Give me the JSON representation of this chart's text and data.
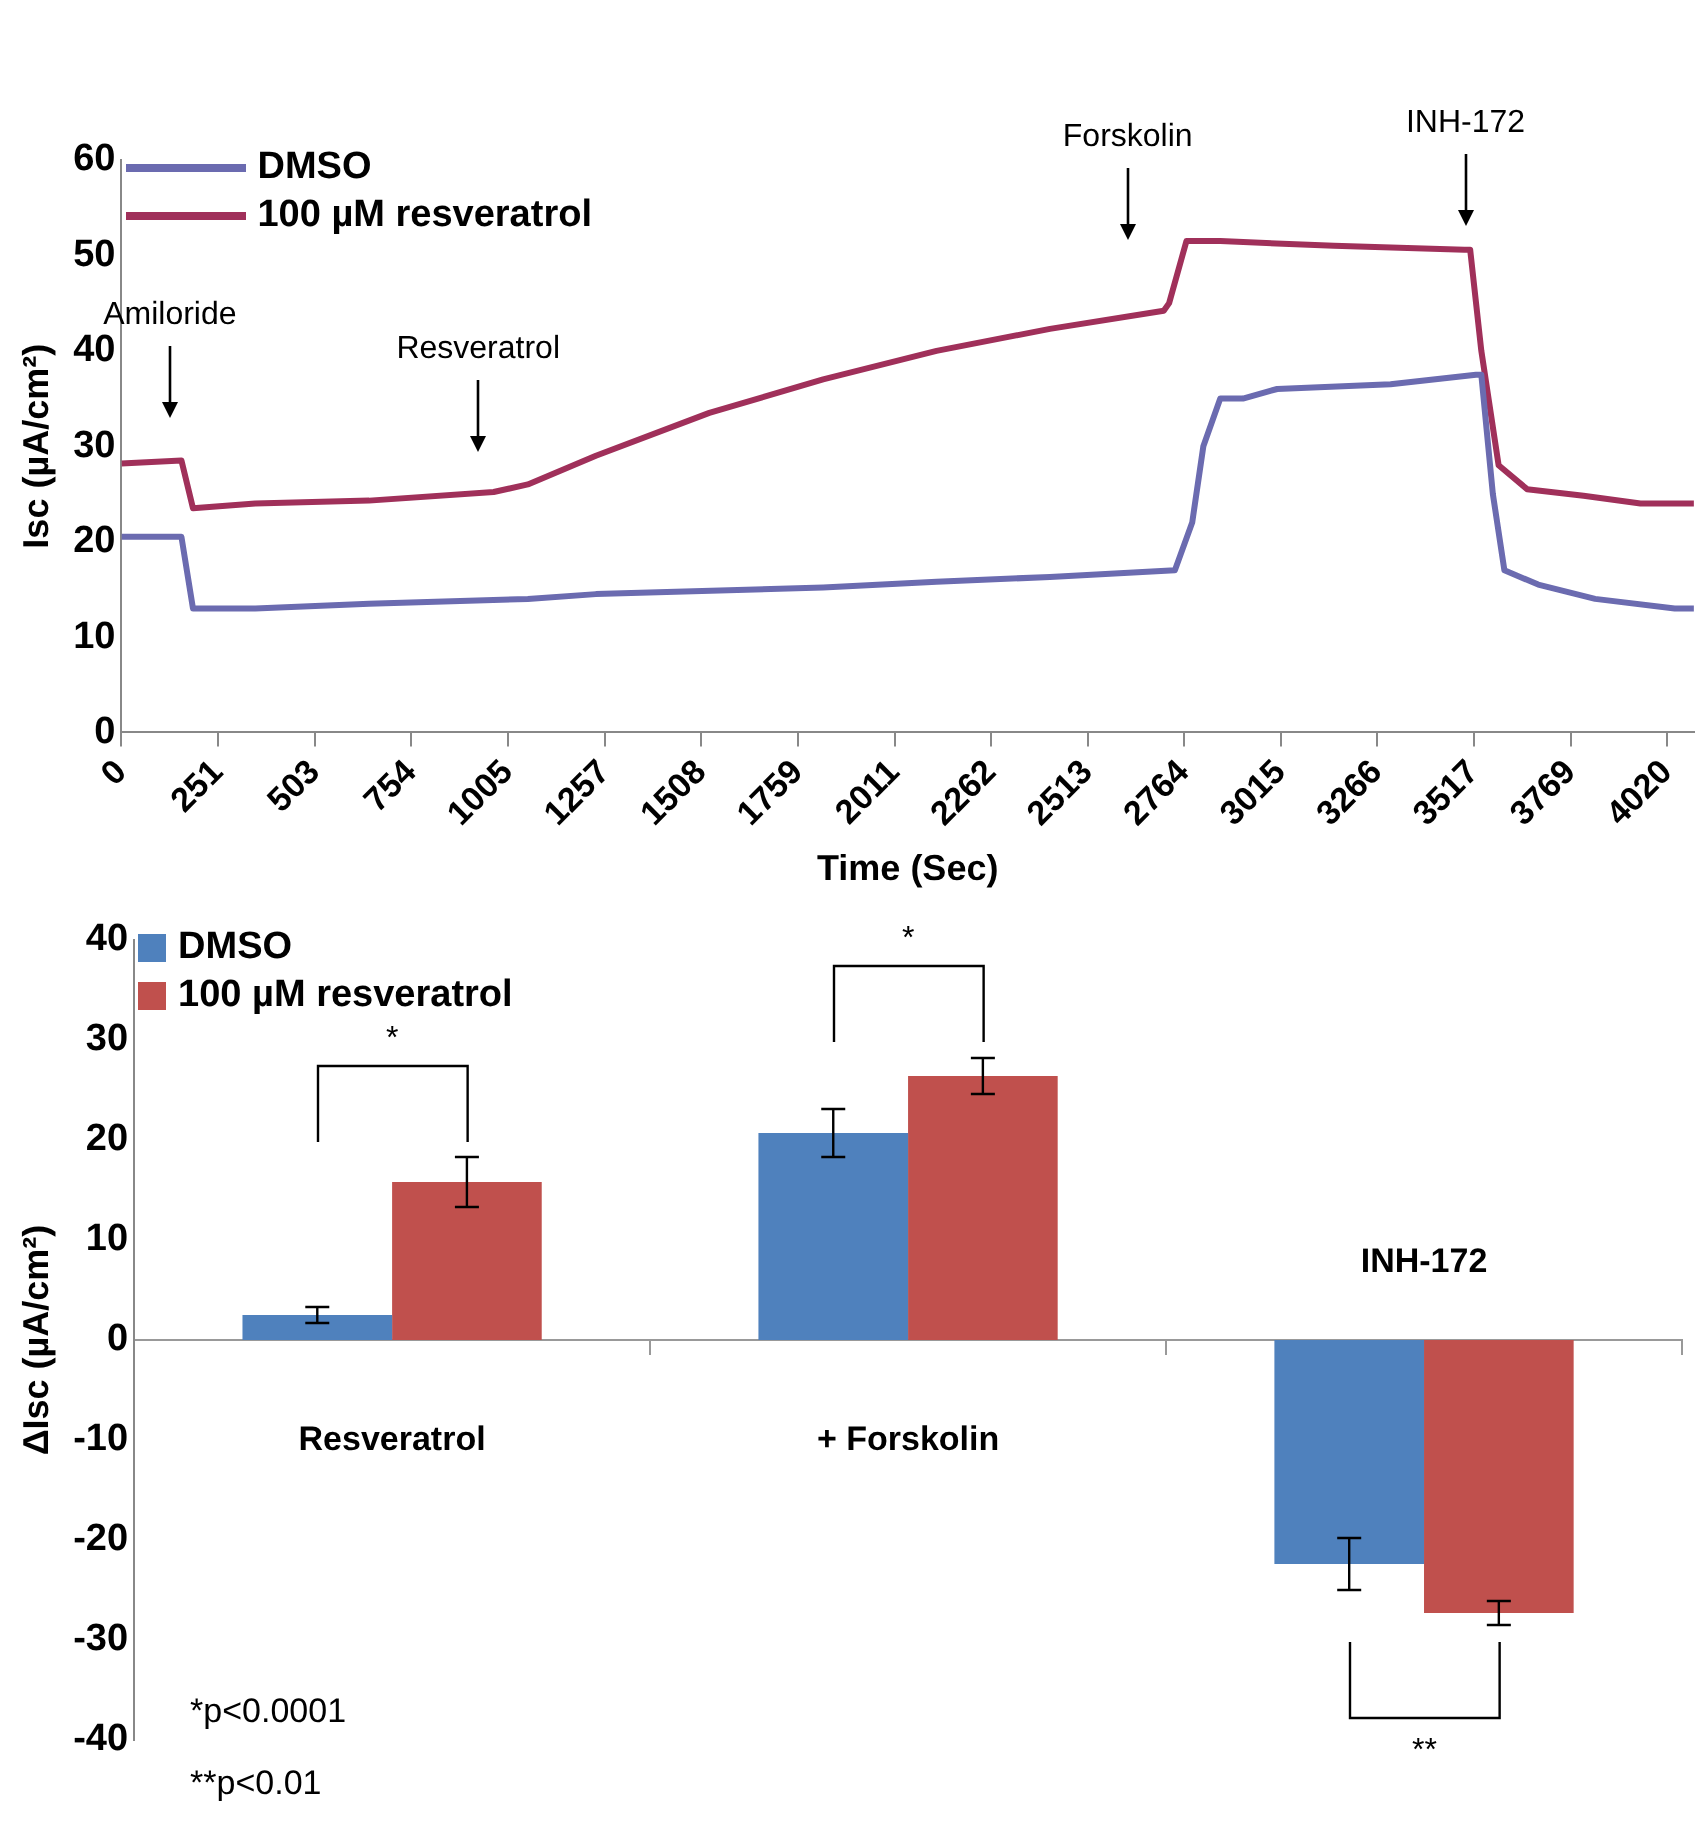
{
  "chart_data": [
    {
      "type": "line",
      "xlabel": "Time (Sec)",
      "ylabel": "Isc (µA/cm²)",
      "xlim": [
        0,
        4090
      ],
      "xticks": [
        0,
        251,
        503,
        754,
        1005,
        1257,
        1508,
        1759,
        2011,
        2262,
        2513,
        2764,
        3015,
        3266,
        3517,
        3769,
        4020
      ],
      "ylim": [
        0,
        60
      ],
      "yticks": [
        0,
        10,
        20,
        30,
        40,
        50,
        60
      ],
      "grid": false,
      "legend": "top left",
      "marker": "none",
      "line_style": "solid",
      "series": [
        {
          "name": "DMSO",
          "color": "#6b6bb0",
          "x": [
            0,
            156,
            186,
            348,
            644,
            1057,
            1234,
            1825,
            2120,
            2415,
            2740,
            2785,
            2814,
            2858,
            2917,
            3006,
            3301,
            3523,
            3537,
            3567,
            3597,
            3685,
            3833,
            4040,
            4090
          ],
          "values": [
            20.5,
            20.5,
            13,
            13,
            13.5,
            14,
            14.5,
            15.2,
            15.8,
            16.3,
            17,
            22,
            30,
            35,
            35,
            36,
            36.5,
            37.5,
            37.5,
            25,
            17,
            15.5,
            14,
            13,
            13
          ]
        },
        {
          "name": "100 µM resveratrol",
          "color": "#a0305a",
          "x": [
            0,
            156,
            186,
            348,
            644,
            968,
            1057,
            1234,
            1529,
            1825,
            2120,
            2415,
            2711,
            2725,
            2770,
            2858,
            3154,
            3493,
            3508,
            3537,
            3582,
            3656,
            3803,
            3951,
            4090
          ],
          "values": [
            28.2,
            28.5,
            23.5,
            24,
            24.3,
            25.2,
            26,
            29,
            33.5,
            37,
            40,
            42.3,
            44.2,
            45,
            51.5,
            51.5,
            51,
            50.6,
            50.6,
            40,
            28,
            25.5,
            24.8,
            24,
            24
          ]
        }
      ],
      "annotations": [
        "Amiloride",
        "Resveratrol",
        "Forskolin",
        "INH-172"
      ]
    },
    {
      "type": "bar",
      "ylabel": "ΔIsc (µA/cm²)",
      "categories": [
        "Resveratrol",
        "+ Forskolin",
        "INH-172"
      ],
      "ylim": [
        -40,
        40
      ],
      "yticks": [
        -40,
        -30,
        -20,
        -10,
        0,
        10,
        20,
        30,
        40
      ],
      "grid": false,
      "legend": "top left",
      "series": [
        {
          "name": "DMSO",
          "color": "#4f81bd",
          "values": [
            2.5,
            20.7,
            -22.4
          ],
          "errors": [
            0.8,
            2.4,
            2.6
          ]
        },
        {
          "name": "100 µM resveratrol",
          "color": "#c0504d",
          "values": [
            15.8,
            26.4,
            -27.3
          ],
          "errors": [
            2.5,
            1.8,
            1.2
          ]
        }
      ],
      "annotations": [
        "*",
        "*",
        "**",
        "*p<0.0001",
        "**p<0.01"
      ]
    }
  ]
}
